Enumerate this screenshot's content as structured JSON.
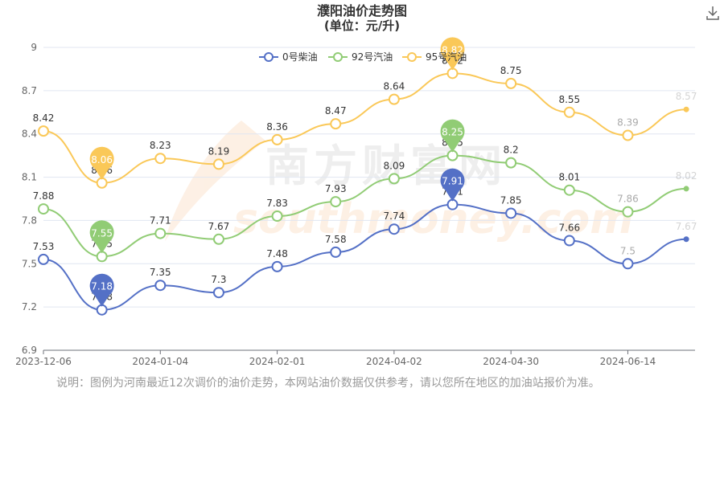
{
  "chart_data": {
    "type": "line",
    "title": "濮阳油价走势图",
    "subtitle": "(单位：元/升)",
    "x_ticks": [
      "2023-12-06",
      "2024-01-04",
      "2024-02-01",
      "2024-04-02",
      "2024-04-30",
      "2024-06-14"
    ],
    "yticks": [
      6.9,
      7.2,
      7.5,
      7.8,
      8.1,
      8.4,
      8.7,
      9
    ],
    "ylim": [
      6.9,
      9
    ],
    "legend_position": "top-center",
    "series": [
      {
        "name": "0号柴油",
        "color": "#5470c6",
        "values": [
          7.53,
          7.18,
          7.35,
          7.3,
          7.48,
          7.58,
          7.74,
          7.91,
          7.85,
          7.66,
          7.5,
          7.67
        ],
        "max": 7.91,
        "min": 7.18
      },
      {
        "name": "92号汽油",
        "color": "#91cc75",
        "values": [
          7.88,
          7.55,
          7.71,
          7.67,
          7.83,
          7.93,
          8.09,
          8.25,
          8.2,
          8.01,
          7.86,
          8.02
        ],
        "max": 8.25,
        "min": 7.55
      },
      {
        "name": "95号汽油",
        "color": "#fac858",
        "values": [
          8.42,
          8.06,
          8.23,
          8.19,
          8.36,
          8.47,
          8.64,
          8.82,
          8.75,
          8.55,
          8.39,
          8.57
        ],
        "max": 8.82,
        "min": 8.06
      }
    ],
    "watermark": {
      "cn": "南方财富网",
      "en": "southmoney.com"
    }
  },
  "note": "说明：图例为河南最近12次调价的油价走势，本网站油价数据仅供参考，请以您所在地区的加油站报价为准。",
  "icons": {
    "download": "download-icon"
  }
}
